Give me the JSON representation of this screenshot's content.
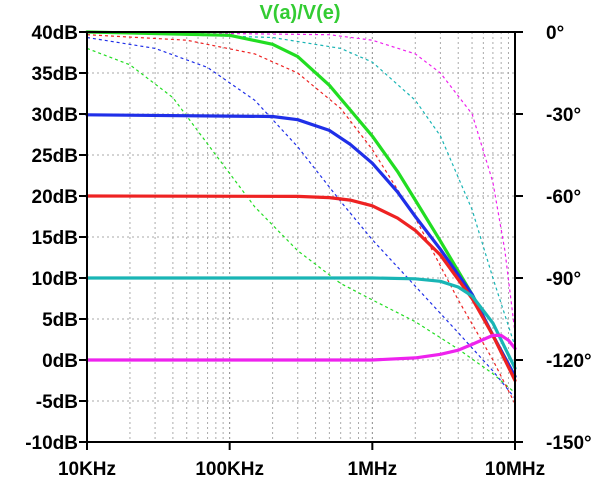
{
  "chart_data": {
    "type": "line",
    "title": "V(a)/V(e)",
    "title_color": "#33cc33",
    "x_scale": "log",
    "xlim": [
      10000,
      10000000
    ],
    "x_ticks": [
      {
        "value": 10000,
        "label": "10KHz"
      },
      {
        "value": 100000,
        "label": "100KHz"
      },
      {
        "value": 1000000,
        "label": "1MHz"
      },
      {
        "value": 10000000,
        "label": "10MHz"
      }
    ],
    "ylim_left": [
      -10,
      40
    ],
    "y_ticks_left": [
      {
        "value": 40,
        "label": "40dB"
      },
      {
        "value": 35,
        "label": "35dB"
      },
      {
        "value": 30,
        "label": "30dB"
      },
      {
        "value": 25,
        "label": "25dB"
      },
      {
        "value": 20,
        "label": "20dB"
      },
      {
        "value": 15,
        "label": "15dB"
      },
      {
        "value": 10,
        "label": "10dB"
      },
      {
        "value": 5,
        "label": "5dB"
      },
      {
        "value": 0,
        "label": "0dB"
      },
      {
        "value": -5,
        "label": "-5dB"
      },
      {
        "value": -10,
        "label": "-10dB"
      }
    ],
    "ylim_right": [
      -150,
      0
    ],
    "y_ticks_right": [
      {
        "value": 0,
        "label": "0°"
      },
      {
        "value": -30,
        "label": "-30°"
      },
      {
        "value": -60,
        "label": "-60°"
      },
      {
        "value": -90,
        "label": "-90°"
      },
      {
        "value": -120,
        "label": "-120°"
      },
      {
        "value": -150,
        "label": "-150°"
      }
    ],
    "grid": true,
    "magnitude_series": [
      {
        "color": "#22dd22",
        "x": [
          10000,
          100000,
          200000,
          300000,
          500000,
          700000,
          1000000,
          1500000,
          2000000,
          3000000,
          5000000,
          7000000,
          10000000
        ],
        "values": [
          40,
          39.6,
          38.5,
          37,
          33.5,
          30.5,
          27.3,
          23,
          19.5,
          14.5,
          8,
          3,
          -2
        ]
      },
      {
        "color": "#1f2fe8",
        "x": [
          10000,
          200000,
          300000,
          500000,
          700000,
          1000000,
          1500000,
          2000000,
          3000000,
          5000000,
          7000000,
          10000000
        ],
        "values": [
          29.9,
          29.7,
          29.3,
          28,
          26.3,
          24,
          20.5,
          17.5,
          13.5,
          8,
          3,
          -2
        ]
      },
      {
        "color": "#ee2222",
        "x": [
          10000,
          300000,
          500000,
          700000,
          1000000,
          1500000,
          2000000,
          3000000,
          5000000,
          7000000,
          10000000
        ],
        "values": [
          20,
          19.95,
          19.8,
          19.5,
          18.8,
          17.3,
          15.8,
          12.8,
          7.5,
          3,
          -2.5
        ]
      },
      {
        "color": "#19b5b5",
        "x": [
          10000,
          1000000,
          2000000,
          3000000,
          4000000,
          5000000,
          7000000,
          10000000
        ],
        "values": [
          10,
          10,
          9.9,
          9.6,
          8.9,
          7.8,
          4.5,
          -1
        ]
      },
      {
        "color": "#ee22ee",
        "x": [
          10000,
          1000000,
          2000000,
          3000000,
          4000000,
          5000000,
          6000000,
          7000000,
          8000000,
          9000000,
          10000000
        ],
        "values": [
          0,
          0,
          0.25,
          0.7,
          1.2,
          1.9,
          2.5,
          3,
          3,
          2.4,
          1.4
        ]
      }
    ],
    "phase_series": [
      {
        "color": "#22dd22",
        "x": [
          10000,
          20000,
          40000,
          80000,
          150000,
          300000,
          600000,
          1000000,
          2000000,
          4000000,
          7000000,
          10000000
        ],
        "values": [
          -6,
          -12,
          -24,
          -45,
          -64,
          -80,
          -92,
          -98,
          -106,
          -116,
          -125,
          -132
        ]
      },
      {
        "color": "#1f2fe8",
        "x": [
          10000,
          30000,
          70000,
          150000,
          300000,
          600000,
          1000000,
          2000000,
          4000000,
          7000000,
          10000000
        ],
        "values": [
          -2,
          -6,
          -13,
          -25,
          -42,
          -62,
          -76,
          -93,
          -110,
          -124,
          -134
        ]
      },
      {
        "color": "#ee2222",
        "x": [
          10000,
          50000,
          150000,
          300000,
          600000,
          1000000,
          2000000,
          4000000,
          7000000,
          10000000
        ],
        "values": [
          -1,
          -3,
          -8,
          -15,
          -28,
          -43,
          -68,
          -98,
          -120,
          -136
        ]
      },
      {
        "color": "#19b5b5",
        "x": [
          10000,
          200000,
          600000,
          1000000,
          2000000,
          3000000,
          5000000,
          7000000,
          10000000
        ],
        "values": [
          0,
          -2,
          -6,
          -11,
          -25,
          -38,
          -65,
          -90,
          -115
        ]
      },
      {
        "color": "#ee22ee",
        "x": [
          10000,
          500000,
          1000000,
          2000000,
          3000000,
          5000000,
          7000000,
          8500000,
          10000000
        ],
        "values": [
          0,
          -1,
          -3,
          -8,
          -15,
          -30,
          -55,
          -80,
          -110
        ]
      }
    ]
  }
}
